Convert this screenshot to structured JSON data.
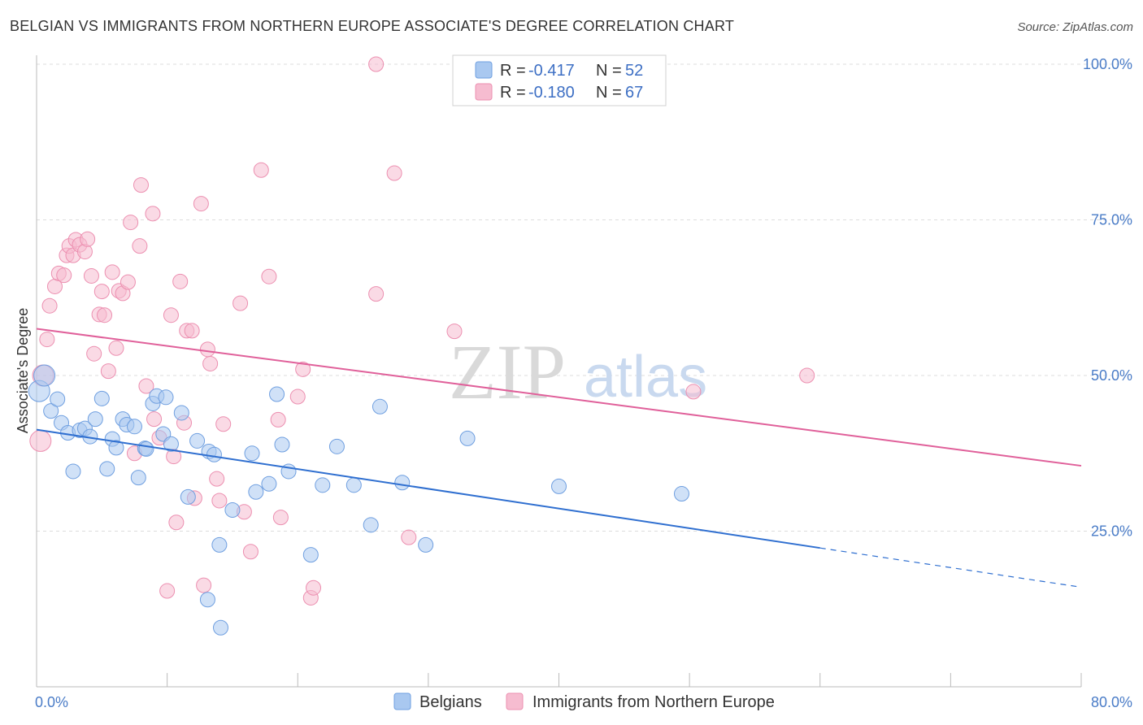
{
  "title": "BELGIAN VS IMMIGRANTS FROM NORTHERN EUROPE ASSOCIATE'S DEGREE CORRELATION CHART",
  "source": "Source: ZipAtlas.com",
  "watermark": {
    "zip": "ZIP",
    "atlas": "atlas"
  },
  "colors": {
    "belgians_fill": "#a9c8f0",
    "belgians_stroke": "#6f9fe0",
    "belgians_line": "#2f6fd0",
    "immigrants_fill": "#f6bcd0",
    "immigrants_stroke": "#ec8fb0",
    "immigrants_line": "#e0609a",
    "grid": "#dddddd",
    "tick_label": "#4a7cc7"
  },
  "legend": {
    "rows": [
      {
        "r_label": "R =",
        "r_value": "-0.417",
        "n_label": "N =",
        "n_value": "52"
      },
      {
        "r_label": "R =",
        "r_value": "-0.180",
        "n_label": "N =",
        "n_value": "67"
      }
    ]
  },
  "chart_data": {
    "type": "scatter",
    "title": "BELGIAN VS IMMIGRANTS FROM NORTHERN EUROPE ASSOCIATE'S DEGREE CORRELATION CHART",
    "xlabel": "",
    "ylabel": "Associate's Degree",
    "xlim": [
      0,
      80
    ],
    "ylim": [
      0,
      103
    ],
    "x_tick_labels": [
      "0.0%",
      "80.0%"
    ],
    "y_ticks": [
      25,
      50,
      75,
      100
    ],
    "y_tick_labels": [
      "25.0%",
      "50.0%",
      "75.0%",
      "100.0%"
    ],
    "grid": true,
    "legend_position": "top-center",
    "series": [
      {
        "name": "Belgians",
        "r": -0.417,
        "n": 52,
        "trend": {
          "x0": 0,
          "y0": 41.3,
          "x1": 60,
          "y1": 22.3,
          "dashed_to_x": 80,
          "dashed_to_y": 16.0
        },
        "points": [
          [
            0.2,
            47.5
          ],
          [
            0.6,
            50.0
          ],
          [
            1.1,
            44.3
          ],
          [
            1.6,
            46.2
          ],
          [
            1.9,
            42.4
          ],
          [
            2.4,
            40.8
          ],
          [
            2.8,
            34.6
          ],
          [
            3.3,
            41.2
          ],
          [
            3.7,
            41.5
          ],
          [
            4.1,
            40.2
          ],
          [
            4.5,
            43.0
          ],
          [
            5.0,
            46.3
          ],
          [
            5.4,
            35.0
          ],
          [
            5.8,
            39.8
          ],
          [
            6.1,
            38.4
          ],
          [
            6.6,
            43.0
          ],
          [
            6.9,
            42.1
          ],
          [
            7.5,
            41.8
          ],
          [
            7.8,
            33.6
          ],
          [
            8.3,
            38.3
          ],
          [
            8.9,
            45.5
          ],
          [
            9.2,
            46.7
          ],
          [
            9.7,
            40.6
          ],
          [
            9.9,
            46.5
          ],
          [
            10.3,
            39.0
          ],
          [
            11.1,
            44.0
          ],
          [
            11.6,
            30.5
          ],
          [
            12.3,
            39.5
          ],
          [
            13.2,
            37.8
          ],
          [
            13.6,
            37.3
          ],
          [
            14.0,
            22.8
          ],
          [
            14.1,
            9.5
          ],
          [
            15.0,
            28.4
          ],
          [
            16.5,
            37.5
          ],
          [
            16.8,
            31.3
          ],
          [
            17.8,
            32.6
          ],
          [
            18.4,
            47.0
          ],
          [
            18.8,
            38.9
          ],
          [
            19.3,
            34.6
          ],
          [
            21.0,
            21.2
          ],
          [
            21.9,
            32.4
          ],
          [
            23.0,
            38.6
          ],
          [
            24.3,
            32.4
          ],
          [
            25.6,
            26.0
          ],
          [
            26.3,
            45.0
          ],
          [
            28.0,
            32.8
          ],
          [
            29.8,
            22.8
          ],
          [
            33.0,
            39.9
          ],
          [
            40.0,
            32.2
          ],
          [
            49.4,
            31.0
          ],
          [
            13.1,
            14.0
          ],
          [
            8.4,
            38.2
          ]
        ]
      },
      {
        "name": "Immigrants from Northern Europe",
        "r": -0.18,
        "n": 67,
        "trend": {
          "x0": 0,
          "y0": 57.5,
          "x1": 80,
          "y1": 35.5
        },
        "points": [
          [
            0.3,
            39.5
          ],
          [
            0.5,
            50.0
          ],
          [
            0.8,
            55.8
          ],
          [
            1.0,
            61.2
          ],
          [
            1.4,
            64.3
          ],
          [
            1.7,
            66.4
          ],
          [
            2.1,
            66.1
          ],
          [
            2.3,
            69.3
          ],
          [
            2.5,
            70.8
          ],
          [
            2.8,
            69.3
          ],
          [
            3.0,
            71.8
          ],
          [
            3.3,
            71.0
          ],
          [
            3.7,
            69.9
          ],
          [
            3.9,
            71.9
          ],
          [
            4.2,
            66.0
          ],
          [
            4.4,
            53.5
          ],
          [
            4.8,
            59.8
          ],
          [
            5.0,
            63.5
          ],
          [
            5.2,
            59.7
          ],
          [
            5.5,
            50.7
          ],
          [
            5.8,
            66.6
          ],
          [
            6.1,
            54.4
          ],
          [
            6.3,
            63.6
          ],
          [
            6.6,
            63.2
          ],
          [
            7.0,
            65.0
          ],
          [
            7.2,
            74.6
          ],
          [
            7.5,
            37.5
          ],
          [
            7.9,
            70.8
          ],
          [
            8.0,
            80.6
          ],
          [
            8.4,
            48.3
          ],
          [
            8.9,
            76.0
          ],
          [
            9.0,
            43.0
          ],
          [
            9.4,
            40.0
          ],
          [
            10.0,
            15.4
          ],
          [
            10.3,
            59.7
          ],
          [
            10.5,
            37.0
          ],
          [
            10.7,
            26.4
          ],
          [
            11.0,
            65.1
          ],
          [
            11.3,
            42.4
          ],
          [
            11.5,
            57.2
          ],
          [
            11.9,
            57.2
          ],
          [
            12.6,
            77.6
          ],
          [
            12.8,
            16.3
          ],
          [
            13.1,
            54.2
          ],
          [
            13.3,
            51.9
          ],
          [
            13.8,
            33.4
          ],
          [
            14.0,
            29.9
          ],
          [
            14.3,
            42.2
          ],
          [
            15.6,
            61.6
          ],
          [
            15.9,
            28.1
          ],
          [
            16.4,
            21.7
          ],
          [
            17.2,
            83.0
          ],
          [
            17.8,
            65.9
          ],
          [
            18.5,
            42.9
          ],
          [
            18.7,
            27.2
          ],
          [
            20.0,
            46.6
          ],
          [
            20.4,
            51.0
          ],
          [
            21.0,
            14.3
          ],
          [
            21.2,
            15.9
          ],
          [
            26.0,
            100.0
          ],
          [
            26.0,
            63.1
          ],
          [
            27.4,
            82.5
          ],
          [
            28.5,
            24.0
          ],
          [
            32.0,
            57.1
          ],
          [
            50.3,
            47.4
          ],
          [
            59.0,
            50.0
          ],
          [
            12.1,
            30.3
          ]
        ]
      }
    ]
  }
}
